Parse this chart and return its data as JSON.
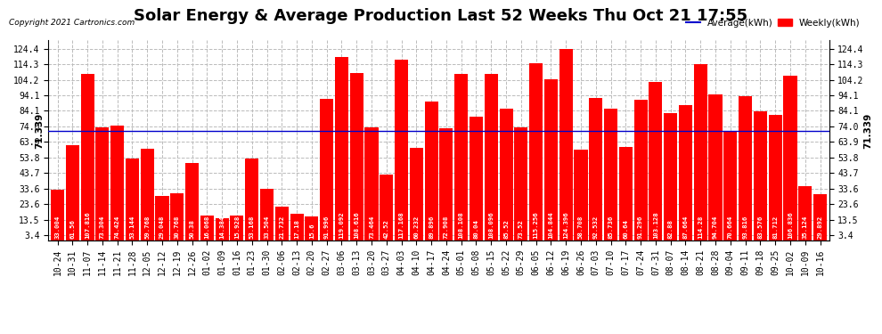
{
  "title": "Solar Energy & Average Production Last 52 Weeks Thu Oct 21 17:55",
  "copyright": "Copyright 2021 Cartronics.com",
  "average_value": 71.339,
  "average_label": "71.339",
  "legend_avg": "Average(kWh)",
  "legend_weekly": "Weekly(kWh)",
  "bar_color": "#FF0000",
  "avg_line_color": "#0000CC",
  "background_color": "#FFFFFF",
  "plot_bg_color": "#FFFFFF",
  "grid_color": "#BBBBBB",
  "yticks": [
    3.4,
    13.5,
    23.6,
    33.6,
    43.7,
    53.8,
    63.9,
    74.0,
    84.1,
    94.1,
    104.2,
    114.3,
    124.4
  ],
  "categories": [
    "10-24",
    "10-31",
    "11-07",
    "11-14",
    "11-21",
    "11-28",
    "12-05",
    "12-12",
    "12-19",
    "12-26",
    "01-02",
    "01-09",
    "01-16",
    "01-23",
    "01-30",
    "02-06",
    "02-13",
    "02-20",
    "02-27",
    "03-06",
    "03-13",
    "03-20",
    "03-27",
    "04-03",
    "04-10",
    "04-17",
    "04-24",
    "05-01",
    "05-08",
    "05-15",
    "05-22",
    "05-29",
    "06-05",
    "06-12",
    "06-19",
    "06-26",
    "07-03",
    "07-10",
    "07-17",
    "07-24",
    "07-31",
    "08-07",
    "08-14",
    "08-21",
    "08-28",
    "09-04",
    "09-11",
    "09-18",
    "09-25",
    "10-02",
    "10-09",
    "10-16"
  ],
  "values": [
    33.004,
    61.56,
    107.816,
    73.304,
    74.424,
    53.144,
    59.768,
    29.048,
    30.768,
    50.38,
    16.068,
    14.384,
    15.928,
    53.168,
    33.504,
    21.732,
    17.18,
    15.6,
    91.996,
    119.092,
    108.616,
    73.464,
    42.52,
    117.168,
    60.232,
    89.896,
    72.908,
    108.108,
    80.04,
    108.096,
    85.52,
    73.52,
    115.256,
    104.844,
    124.396,
    58.708,
    92.532,
    85.736,
    60.64,
    91.296,
    103.128,
    82.88,
    87.664,
    114.28,
    94.704,
    70.664,
    93.816,
    83.576,
    81.712,
    106.836,
    35.124,
    29.892
  ],
  "ymin": 0,
  "ymax": 130,
  "title_fontsize": 13,
  "tick_fontsize": 7,
  "val_fontsize": 5.2,
  "avg_label_fontsize": 7.5
}
